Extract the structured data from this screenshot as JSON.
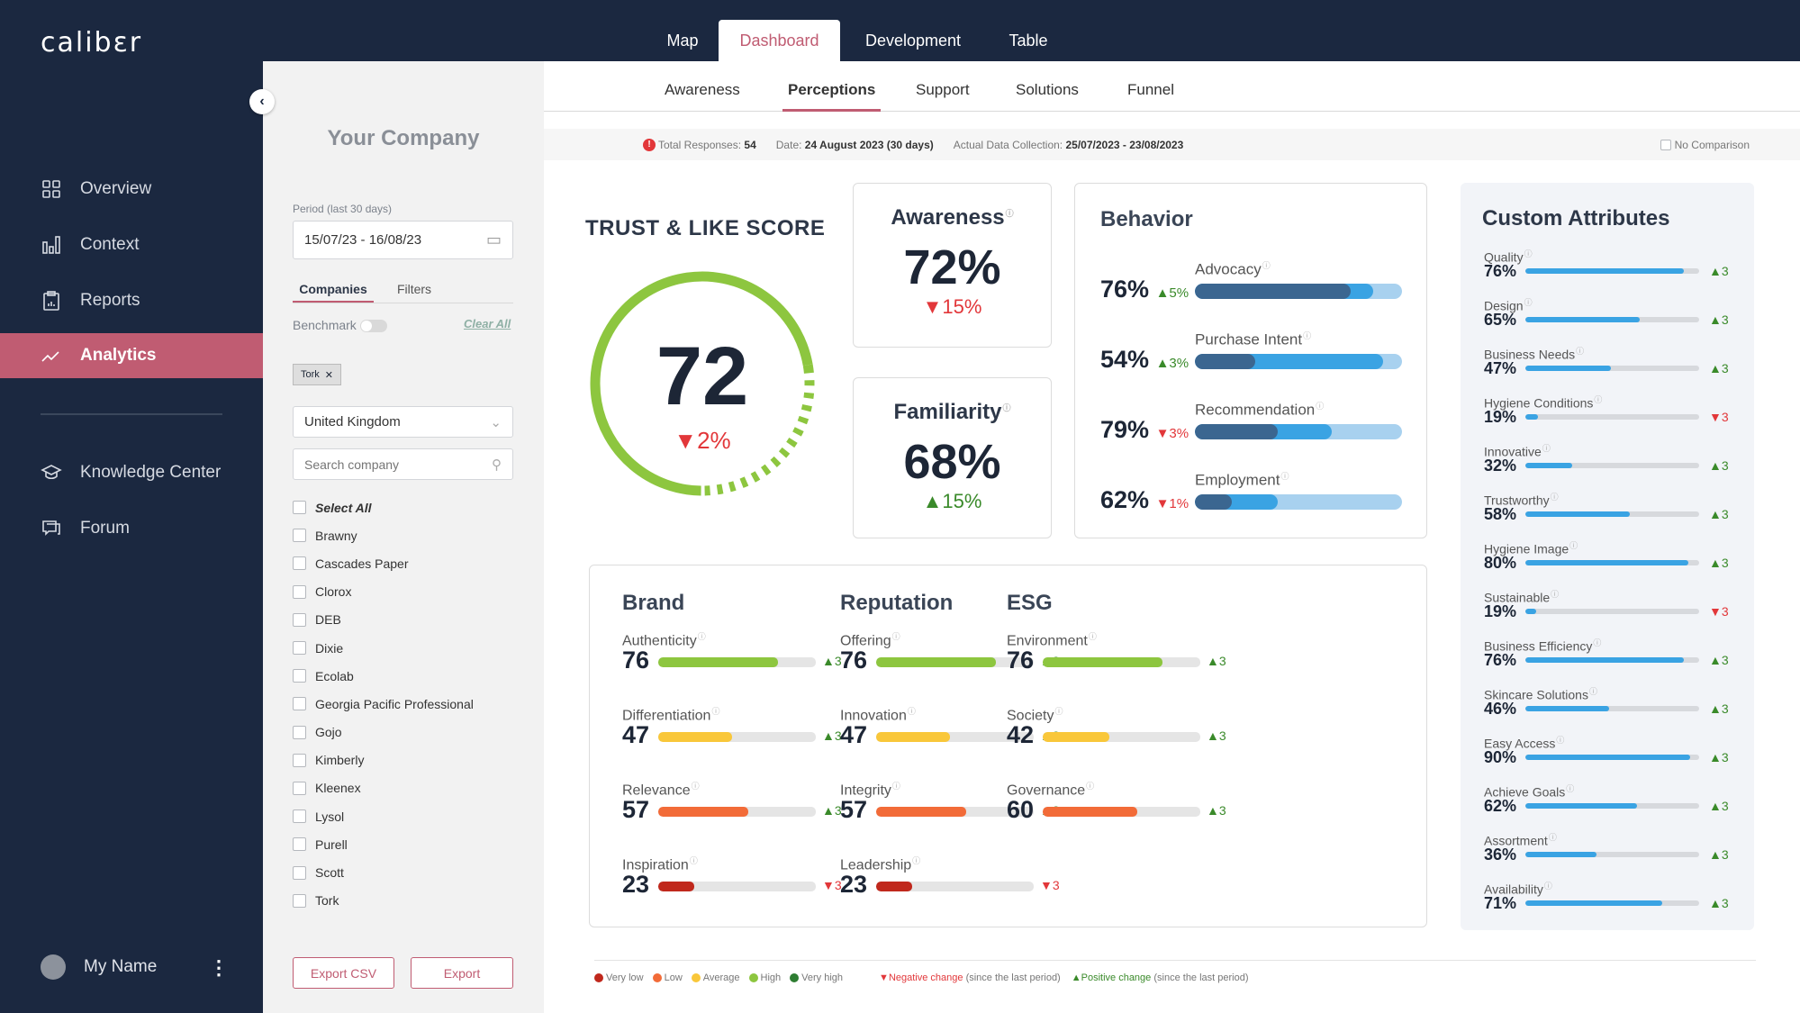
{
  "app": {
    "logo": "calibɛr"
  },
  "topnav": {
    "tabs": [
      {
        "label": "Map"
      },
      {
        "label": "Dashboard",
        "active": true
      },
      {
        "label": "Development"
      },
      {
        "label": "Table"
      }
    ]
  },
  "sidebar": {
    "items": [
      {
        "label": "Overview",
        "icon": "grid-icon"
      },
      {
        "label": "Context",
        "icon": "bar-chart-icon"
      },
      {
        "label": "Reports",
        "icon": "clipboard-icon"
      },
      {
        "label": "Analytics",
        "icon": "trend-line-icon",
        "active": true
      },
      {
        "label": "Knowledge Center",
        "icon": "graduation-cap-icon"
      },
      {
        "label": "Forum",
        "icon": "chat-icon"
      }
    ],
    "user": "My Name"
  },
  "panel": {
    "title": "Your Company",
    "period_label": "Period (last 30 days)",
    "period_value": "15/07/23 - 16/08/23",
    "tabs": [
      "Companies",
      "Filters"
    ],
    "benchmark_label": "Benchmark",
    "benchmark_on": false,
    "clear_all": "Clear All",
    "chip": "Tork",
    "country": "United Kingdom",
    "search_placeholder": "Search company",
    "select_all": "Select All",
    "companies": [
      "Brawny",
      "Cascades Paper",
      "Clorox",
      "DEB",
      "Dixie",
      "Ecolab",
      "Georgia Pacific Professional",
      "Gojo",
      "Kimberly",
      "Kleenex",
      "Lysol",
      "Purell",
      "Scott",
      "Tork"
    ],
    "export_csv": "Export CSV",
    "export": "Export"
  },
  "subtabs": [
    {
      "label": "Awareness"
    },
    {
      "label": "Perceptions",
      "active": true
    },
    {
      "label": "Support"
    },
    {
      "label": "Solutions"
    },
    {
      "label": "Funnel"
    }
  ],
  "info": {
    "responses_label": "Total Responses:",
    "responses": "54",
    "date_label": "Date:",
    "date": "24 August 2023 (30 days)",
    "collection_label": "Actual Data Collection:",
    "collection": "25/07/2023 - 23/08/2023",
    "no_comparison": "No Comparison"
  },
  "trust": {
    "title": "TRUST & LIKE SCORE",
    "score": "72",
    "change": "2%",
    "direction": "down",
    "percent": 72,
    "color": "#8dc63f"
  },
  "awareness": {
    "title": "Awareness",
    "value": "72%",
    "change": "15%",
    "direction": "down"
  },
  "familiarity": {
    "title": "Familiarity",
    "value": "68%",
    "change": "15%",
    "direction": "up"
  },
  "behavior": {
    "title": "Behavior",
    "colors": {
      "dark": "#3b6690",
      "mid": "#3aa3e3",
      "light": "#a8d1ef"
    },
    "rows": [
      {
        "label": "Advocacy",
        "value": "76%",
        "change": "5%",
        "direction": "up",
        "dark": 75,
        "mid": 86
      },
      {
        "label": "Purchase Intent",
        "value": "54%",
        "change": "3%",
        "direction": "up",
        "dark": 29,
        "mid": 91
      },
      {
        "label": "Recommendation",
        "value": "79%",
        "change": "3%",
        "direction": "down",
        "dark": 40,
        "mid": 66
      },
      {
        "label": "Employment",
        "value": "62%",
        "change": "1%",
        "direction": "down",
        "dark": 18,
        "mid": 40
      }
    ]
  },
  "groups": [
    {
      "title": "Brand",
      "rows": [
        {
          "label": "Authenticity",
          "value": "76",
          "level": "high",
          "change": "3",
          "direction": "up"
        },
        {
          "label": "Differentiation",
          "value": "47",
          "level": "average",
          "change": "3",
          "direction": "up"
        },
        {
          "label": "Relevance",
          "value": "57",
          "level": "low",
          "change": "3",
          "direction": "up"
        },
        {
          "label": "Inspiration",
          "value": "23",
          "level": "verylow",
          "change": "3",
          "direction": "down"
        }
      ]
    },
    {
      "title": "Reputation",
      "rows": [
        {
          "label": "Offering",
          "value": "76",
          "level": "high",
          "change": "3",
          "direction": "up"
        },
        {
          "label": "Innovation",
          "value": "47",
          "level": "average",
          "change": "3",
          "direction": "up"
        },
        {
          "label": "Integrity",
          "value": "57",
          "level": "low",
          "change": "3",
          "direction": "up"
        },
        {
          "label": "Leadership",
          "value": "23",
          "level": "verylow",
          "change": "3",
          "direction": "down"
        }
      ]
    },
    {
      "title": "ESG",
      "rows": [
        {
          "label": "Environment",
          "value": "76",
          "level": "high",
          "change": "3",
          "direction": "up"
        },
        {
          "label": "Society",
          "value": "42",
          "level": "average",
          "change": "3",
          "direction": "up"
        },
        {
          "label": "Governance",
          "value": "60",
          "level": "low",
          "change": "3",
          "direction": "up"
        }
      ]
    }
  ],
  "level_colors": {
    "verylow": "#c0281c",
    "low": "#f26b38",
    "average": "#f9c73a",
    "high": "#8dc63f",
    "veryhigh": "#2e7d32"
  },
  "custom": {
    "title": "Custom Attributes",
    "color": "#3aa3e3",
    "rows": [
      {
        "label": "Quality",
        "value": "76%",
        "fill": 91,
        "change": "3",
        "direction": "up"
      },
      {
        "label": "Design",
        "value": "65%",
        "fill": 66,
        "change": "3",
        "direction": "up"
      },
      {
        "label": "Business Needs",
        "value": "47%",
        "fill": 49,
        "change": "3",
        "direction": "up"
      },
      {
        "label": "Hygiene Conditions",
        "value": "19%",
        "fill": 7,
        "change": "3",
        "direction": "down"
      },
      {
        "label": "Innovative",
        "value": "32%",
        "fill": 27,
        "change": "3",
        "direction": "up"
      },
      {
        "label": "Trustworthy",
        "value": "58%",
        "fill": 60,
        "change": "3",
        "direction": "up"
      },
      {
        "label": "Hygiene Image",
        "value": "80%",
        "fill": 94,
        "change": "3",
        "direction": "up"
      },
      {
        "label": "Sustainable",
        "value": "19%",
        "fill": 6,
        "change": "3",
        "direction": "down"
      },
      {
        "label": "Business Efficiency",
        "value": "76%",
        "fill": 91,
        "change": "3",
        "direction": "up"
      },
      {
        "label": "Skincare Solutions",
        "value": "46%",
        "fill": 48,
        "change": "3",
        "direction": "up"
      },
      {
        "label": "Easy Access",
        "value": "90%",
        "fill": 95,
        "change": "3",
        "direction": "up"
      },
      {
        "label": "Achieve Goals",
        "value": "62%",
        "fill": 64,
        "change": "3",
        "direction": "up"
      },
      {
        "label": "Assortment",
        "value": "36%",
        "fill": 41,
        "change": "3",
        "direction": "up"
      },
      {
        "label": "Availability",
        "value": "71%",
        "fill": 79,
        "change": "3",
        "direction": "up"
      }
    ]
  },
  "legend": {
    "levels": [
      {
        "key": "verylow",
        "label": "Very low"
      },
      {
        "key": "low",
        "label": "Low"
      },
      {
        "key": "average",
        "label": "Average"
      },
      {
        "key": "high",
        "label": "High"
      },
      {
        "key": "veryhigh",
        "label": "Very high"
      }
    ],
    "negative": "Negative change",
    "positive": "Positive change",
    "since": "(since the last period)"
  }
}
